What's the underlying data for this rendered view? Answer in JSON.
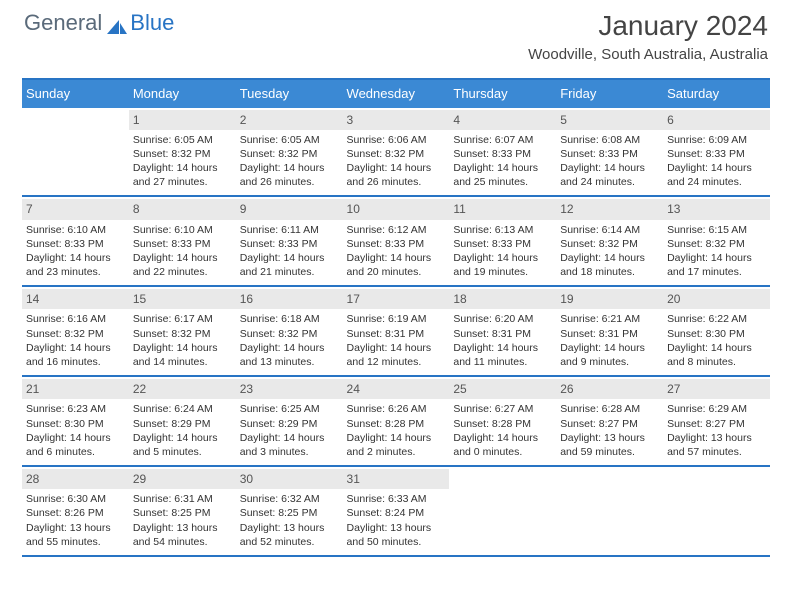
{
  "logo": {
    "text1": "General",
    "text2": "Blue"
  },
  "title": "January 2024",
  "location": "Woodville, South Australia, Australia",
  "colors": {
    "header_bg": "#3b89d4",
    "rule": "#2874c4",
    "daynum_bg": "#e9e9e9",
    "text": "#333333"
  },
  "day_labels": [
    "Sunday",
    "Monday",
    "Tuesday",
    "Wednesday",
    "Thursday",
    "Friday",
    "Saturday"
  ],
  "weeks": [
    [
      null,
      {
        "n": "1",
        "sr": "Sunrise: 6:05 AM",
        "ss": "Sunset: 8:32 PM",
        "d1": "Daylight: 14 hours",
        "d2": "and 27 minutes."
      },
      {
        "n": "2",
        "sr": "Sunrise: 6:05 AM",
        "ss": "Sunset: 8:32 PM",
        "d1": "Daylight: 14 hours",
        "d2": "and 26 minutes."
      },
      {
        "n": "3",
        "sr": "Sunrise: 6:06 AM",
        "ss": "Sunset: 8:32 PM",
        "d1": "Daylight: 14 hours",
        "d2": "and 26 minutes."
      },
      {
        "n": "4",
        "sr": "Sunrise: 6:07 AM",
        "ss": "Sunset: 8:33 PM",
        "d1": "Daylight: 14 hours",
        "d2": "and 25 minutes."
      },
      {
        "n": "5",
        "sr": "Sunrise: 6:08 AM",
        "ss": "Sunset: 8:33 PM",
        "d1": "Daylight: 14 hours",
        "d2": "and 24 minutes."
      },
      {
        "n": "6",
        "sr": "Sunrise: 6:09 AM",
        "ss": "Sunset: 8:33 PM",
        "d1": "Daylight: 14 hours",
        "d2": "and 24 minutes."
      }
    ],
    [
      {
        "n": "7",
        "sr": "Sunrise: 6:10 AM",
        "ss": "Sunset: 8:33 PM",
        "d1": "Daylight: 14 hours",
        "d2": "and 23 minutes."
      },
      {
        "n": "8",
        "sr": "Sunrise: 6:10 AM",
        "ss": "Sunset: 8:33 PM",
        "d1": "Daylight: 14 hours",
        "d2": "and 22 minutes."
      },
      {
        "n": "9",
        "sr": "Sunrise: 6:11 AM",
        "ss": "Sunset: 8:33 PM",
        "d1": "Daylight: 14 hours",
        "d2": "and 21 minutes."
      },
      {
        "n": "10",
        "sr": "Sunrise: 6:12 AM",
        "ss": "Sunset: 8:33 PM",
        "d1": "Daylight: 14 hours",
        "d2": "and 20 minutes."
      },
      {
        "n": "11",
        "sr": "Sunrise: 6:13 AM",
        "ss": "Sunset: 8:33 PM",
        "d1": "Daylight: 14 hours",
        "d2": "and 19 minutes."
      },
      {
        "n": "12",
        "sr": "Sunrise: 6:14 AM",
        "ss": "Sunset: 8:32 PM",
        "d1": "Daylight: 14 hours",
        "d2": "and 18 minutes."
      },
      {
        "n": "13",
        "sr": "Sunrise: 6:15 AM",
        "ss": "Sunset: 8:32 PM",
        "d1": "Daylight: 14 hours",
        "d2": "and 17 minutes."
      }
    ],
    [
      {
        "n": "14",
        "sr": "Sunrise: 6:16 AM",
        "ss": "Sunset: 8:32 PM",
        "d1": "Daylight: 14 hours",
        "d2": "and 16 minutes."
      },
      {
        "n": "15",
        "sr": "Sunrise: 6:17 AM",
        "ss": "Sunset: 8:32 PM",
        "d1": "Daylight: 14 hours",
        "d2": "and 14 minutes."
      },
      {
        "n": "16",
        "sr": "Sunrise: 6:18 AM",
        "ss": "Sunset: 8:32 PM",
        "d1": "Daylight: 14 hours",
        "d2": "and 13 minutes."
      },
      {
        "n": "17",
        "sr": "Sunrise: 6:19 AM",
        "ss": "Sunset: 8:31 PM",
        "d1": "Daylight: 14 hours",
        "d2": "and 12 minutes."
      },
      {
        "n": "18",
        "sr": "Sunrise: 6:20 AM",
        "ss": "Sunset: 8:31 PM",
        "d1": "Daylight: 14 hours",
        "d2": "and 11 minutes."
      },
      {
        "n": "19",
        "sr": "Sunrise: 6:21 AM",
        "ss": "Sunset: 8:31 PM",
        "d1": "Daylight: 14 hours",
        "d2": "and 9 minutes."
      },
      {
        "n": "20",
        "sr": "Sunrise: 6:22 AM",
        "ss": "Sunset: 8:30 PM",
        "d1": "Daylight: 14 hours",
        "d2": "and 8 minutes."
      }
    ],
    [
      {
        "n": "21",
        "sr": "Sunrise: 6:23 AM",
        "ss": "Sunset: 8:30 PM",
        "d1": "Daylight: 14 hours",
        "d2": "and 6 minutes."
      },
      {
        "n": "22",
        "sr": "Sunrise: 6:24 AM",
        "ss": "Sunset: 8:29 PM",
        "d1": "Daylight: 14 hours",
        "d2": "and 5 minutes."
      },
      {
        "n": "23",
        "sr": "Sunrise: 6:25 AM",
        "ss": "Sunset: 8:29 PM",
        "d1": "Daylight: 14 hours",
        "d2": "and 3 minutes."
      },
      {
        "n": "24",
        "sr": "Sunrise: 6:26 AM",
        "ss": "Sunset: 8:28 PM",
        "d1": "Daylight: 14 hours",
        "d2": "and 2 minutes."
      },
      {
        "n": "25",
        "sr": "Sunrise: 6:27 AM",
        "ss": "Sunset: 8:28 PM",
        "d1": "Daylight: 14 hours",
        "d2": "and 0 minutes."
      },
      {
        "n": "26",
        "sr": "Sunrise: 6:28 AM",
        "ss": "Sunset: 8:27 PM",
        "d1": "Daylight: 13 hours",
        "d2": "and 59 minutes."
      },
      {
        "n": "27",
        "sr": "Sunrise: 6:29 AM",
        "ss": "Sunset: 8:27 PM",
        "d1": "Daylight: 13 hours",
        "d2": "and 57 minutes."
      }
    ],
    [
      {
        "n": "28",
        "sr": "Sunrise: 6:30 AM",
        "ss": "Sunset: 8:26 PM",
        "d1": "Daylight: 13 hours",
        "d2": "and 55 minutes."
      },
      {
        "n": "29",
        "sr": "Sunrise: 6:31 AM",
        "ss": "Sunset: 8:25 PM",
        "d1": "Daylight: 13 hours",
        "d2": "and 54 minutes."
      },
      {
        "n": "30",
        "sr": "Sunrise: 6:32 AM",
        "ss": "Sunset: 8:25 PM",
        "d1": "Daylight: 13 hours",
        "d2": "and 52 minutes."
      },
      {
        "n": "31",
        "sr": "Sunrise: 6:33 AM",
        "ss": "Sunset: 8:24 PM",
        "d1": "Daylight: 13 hours",
        "d2": "and 50 minutes."
      },
      null,
      null,
      null
    ]
  ]
}
